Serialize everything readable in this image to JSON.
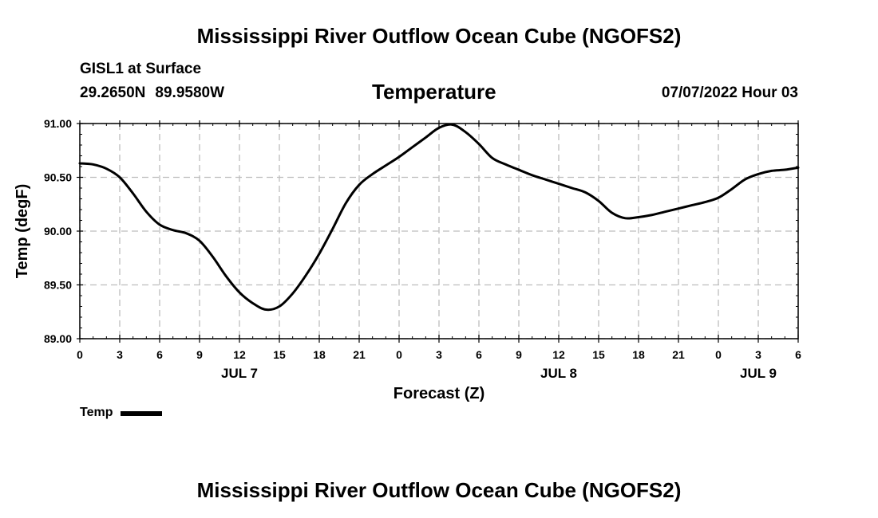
{
  "header": {
    "title": "Mississippi River Outflow Ocean Cube (NGOFS2)",
    "station": "GISL1 at Surface",
    "lat": "29.2650N",
    "lon": "89.9580W",
    "variable": "Temperature",
    "datetime": "07/07/2022 Hour 03"
  },
  "footer": {
    "title": "Mississippi River Outflow Ocean Cube (NGOFS2)"
  },
  "legend": {
    "label": "Temp"
  },
  "chart_data": {
    "type": "line",
    "title": "Temperature",
    "xlabel": "Forecast (Z)",
    "ylabel": "Temp (degF)",
    "xlim": [
      0,
      54
    ],
    "ylim": [
      89.0,
      91.0
    ],
    "yticks": [
      "89.00",
      "89.50",
      "90.00",
      "90.50",
      "91.00"
    ],
    "xticks": [
      "0",
      "3",
      "6",
      "9",
      "12",
      "15",
      "18",
      "21",
      "0",
      "3",
      "6",
      "9",
      "12",
      "15",
      "18",
      "21",
      "0",
      "3",
      "6"
    ],
    "day_labels": [
      {
        "label": "JUL 7",
        "hour": 12
      },
      {
        "label": "JUL 8",
        "hour": 36
      },
      {
        "label": "JUL 9",
        "hour": 51
      }
    ],
    "grid": true,
    "series": [
      {
        "name": "Temp",
        "color": "#000000",
        "x": [
          0,
          1,
          2,
          3,
          4,
          5,
          6,
          7,
          8,
          9,
          10,
          11,
          12,
          13,
          14,
          15,
          16,
          17,
          18,
          19,
          20,
          21,
          22,
          23,
          24,
          25,
          26,
          27,
          28,
          29,
          30,
          31,
          32,
          33,
          34,
          35,
          36,
          37,
          38,
          39,
          40,
          41,
          42,
          43,
          44,
          45,
          46,
          47,
          48,
          49,
          50,
          51,
          52,
          53,
          54
        ],
        "values": [
          90.63,
          90.62,
          90.58,
          90.5,
          90.35,
          90.18,
          90.06,
          90.01,
          89.98,
          89.91,
          89.76,
          89.58,
          89.43,
          89.33,
          89.27,
          89.3,
          89.42,
          89.59,
          89.79,
          90.02,
          90.26,
          90.43,
          90.53,
          90.61,
          90.69,
          90.78,
          90.87,
          90.96,
          90.99,
          90.92,
          90.81,
          90.68,
          90.62,
          90.57,
          90.52,
          90.48,
          90.44,
          90.4,
          90.36,
          90.28,
          90.17,
          90.12,
          90.13,
          90.15,
          90.18,
          90.21,
          90.24,
          90.27,
          90.31,
          90.39,
          90.48,
          90.53,
          90.56,
          90.57,
          90.59
        ]
      }
    ]
  }
}
